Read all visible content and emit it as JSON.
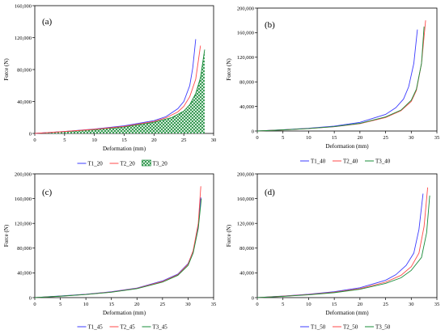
{
  "chart_data": [
    {
      "id": "a",
      "type": "line",
      "panel_label": "(a)",
      "xlabel": "Deformation (mm)",
      "ylabel": "Force (N)",
      "xlim": [
        0,
        30
      ],
      "ylim": [
        0,
        160000
      ],
      "x_ticks": [
        0,
        5,
        10,
        15,
        20,
        25,
        30
      ],
      "y_ticks": [
        0,
        40000,
        80000,
        120000,
        160000
      ],
      "y_tick_labels": [
        "0",
        "40,000",
        "80,000",
        "120,000",
        "160,000"
      ],
      "series": [
        {
          "name": "T1_20",
          "color": "#3c3cff",
          "style": "line",
          "x": [
            0,
            5,
            10,
            15,
            20,
            22,
            24,
            25,
            26,
            26.5,
            27
          ],
          "y": [
            0,
            2500,
            5500,
            9500,
            16000,
            21000,
            31000,
            40000,
            60000,
            82000,
            118000
          ]
        },
        {
          "name": "T2_20",
          "color": "#ff4a4a",
          "style": "line",
          "x": [
            0,
            5,
            10,
            15,
            20,
            22,
            24,
            25,
            26,
            27,
            27.8
          ],
          "y": [
            0,
            2400,
            5200,
            8800,
            15000,
            19500,
            27000,
            34000,
            46000,
            68000,
            110000
          ]
        },
        {
          "name": "T3_20",
          "color": "#1a8c3a",
          "style": "hatched-area",
          "x": [
            0,
            5,
            10,
            15,
            20,
            23,
            25,
            26,
            27,
            27.8,
            28.5
          ],
          "y": [
            0,
            2200,
            4800,
            8200,
            14000,
            20000,
            28000,
            36000,
            50000,
            70000,
            105000
          ]
        }
      ]
    },
    {
      "id": "b",
      "type": "line",
      "panel_label": "(b)",
      "xlabel": "Deformation (mm)",
      "ylabel": "Force (N)",
      "xlim": [
        0,
        35
      ],
      "ylim": [
        0,
        200000
      ],
      "x_ticks": [
        0,
        5,
        10,
        15,
        20,
        25,
        30,
        35
      ],
      "y_ticks": [
        0,
        40000,
        80000,
        120000,
        160000,
        200000
      ],
      "y_tick_labels": [
        "0",
        "40,000",
        "80,000",
        "120,000",
        "160,000",
        "200,000"
      ],
      "series": [
        {
          "name": "T1_40",
          "color": "#3c3cff",
          "style": "line",
          "x": [
            0,
            5,
            10,
            15,
            20,
            25,
            27,
            28.5,
            29.5,
            30.5,
            31.2
          ],
          "y": [
            0,
            2000,
            4500,
            8000,
            14000,
            27000,
            38000,
            52000,
            72000,
            110000,
            165000
          ]
        },
        {
          "name": "T2_40",
          "color": "#ff4a4a",
          "style": "line",
          "x": [
            0,
            5,
            10,
            15,
            20,
            25,
            28,
            30,
            31,
            32,
            32.8
          ],
          "y": [
            0,
            1800,
            4000,
            7000,
            12000,
            22000,
            33000,
            48000,
            66000,
            110000,
            180000
          ]
        },
        {
          "name": "T3_40",
          "color": "#1a8c3a",
          "style": "line",
          "x": [
            0,
            5,
            10,
            15,
            20,
            25,
            28,
            30,
            31,
            32,
            32.5
          ],
          "y": [
            0,
            1800,
            4000,
            7200,
            12500,
            23000,
            34000,
            50000,
            68000,
            110000,
            170000
          ]
        }
      ]
    },
    {
      "id": "c",
      "type": "line",
      "panel_label": "(c)",
      "xlabel": "Deformation (mm)",
      "ylabel": "Force (N)",
      "xlim": [
        0,
        35
      ],
      "ylim": [
        0,
        200000
      ],
      "x_ticks": [
        0,
        5,
        10,
        15,
        20,
        25,
        30,
        35
      ],
      "y_ticks": [
        0,
        40000,
        80000,
        120000,
        160000,
        200000
      ],
      "y_tick_labels": [
        "0",
        "40,000",
        "80,000",
        "120,000",
        "160,000",
        "200,000"
      ],
      "series": [
        {
          "name": "T1_45",
          "color": "#3c3cff",
          "style": "line",
          "x": [
            0,
            5,
            10,
            15,
            20,
            25,
            28,
            30,
            31,
            32,
            32.5
          ],
          "y": [
            0,
            2600,
            5500,
            9500,
            15500,
            27000,
            38000,
            55000,
            75000,
            115000,
            162000
          ]
        },
        {
          "name": "T2_45",
          "color": "#ff4a4a",
          "style": "line",
          "x": [
            0,
            5,
            10,
            15,
            20,
            25,
            28,
            30,
            31,
            32,
            32.5
          ],
          "y": [
            0,
            2400,
            5200,
            9000,
            15000,
            26000,
            37000,
            54000,
            76000,
            120000,
            180000
          ]
        },
        {
          "name": "T3_45",
          "color": "#1a8c3a",
          "style": "line",
          "x": [
            0,
            5,
            10,
            15,
            20,
            25,
            28,
            30,
            31,
            32,
            32.6
          ],
          "y": [
            0,
            2300,
            5000,
            8700,
            14500,
            25000,
            36000,
            52000,
            72000,
            112000,
            160000
          ]
        }
      ]
    },
    {
      "id": "d",
      "type": "line",
      "panel_label": "(d)",
      "xlabel": "Deformation (mm)",
      "ylabel": "Force (N)",
      "xlim": [
        0,
        35
      ],
      "ylim": [
        0,
        200000
      ],
      "x_ticks": [
        0,
        5,
        10,
        15,
        20,
        25,
        30,
        35
      ],
      "y_ticks": [
        0,
        40000,
        80000,
        120000,
        160000,
        200000
      ],
      "y_tick_labels": [
        "0",
        "40,000",
        "80,000",
        "120,000",
        "160,000",
        "200,000"
      ],
      "series": [
        {
          "name": "T1_50",
          "color": "#3c3cff",
          "style": "line",
          "x": [
            0,
            5,
            10,
            15,
            20,
            25,
            27,
            29,
            30.5,
            31.5,
            32.3
          ],
          "y": [
            0,
            2500,
            5500,
            9500,
            16000,
            28000,
            37000,
            52000,
            72000,
            110000,
            168000
          ]
        },
        {
          "name": "T2_50",
          "color": "#ff4a4a",
          "style": "line",
          "x": [
            0,
            5,
            10,
            15,
            20,
            25,
            28,
            30,
            31.5,
            32.5,
            33.2
          ],
          "y": [
            0,
            2300,
            5000,
            8800,
            14500,
            25000,
            36000,
            50000,
            72000,
            115000,
            178000
          ]
        },
        {
          "name": "T3_50",
          "color": "#1a8c3a",
          "style": "line",
          "x": [
            0,
            5,
            10,
            15,
            20,
            25,
            28,
            30,
            32,
            33,
            33.6
          ],
          "y": [
            0,
            2000,
            4500,
            8000,
            13500,
            23000,
            32000,
            44000,
            65000,
            105000,
            165000
          ]
        }
      ]
    }
  ]
}
